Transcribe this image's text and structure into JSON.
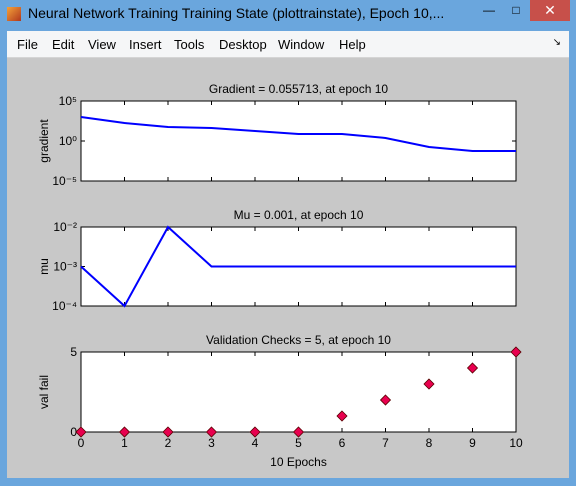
{
  "window": {
    "title": "Neural Network Training Training State (plottrainstate), Epoch 10,..."
  },
  "menu": [
    "File",
    "Edit",
    "View",
    "Insert",
    "Tools",
    "Desktop",
    "Window",
    "Help"
  ],
  "chart_data": [
    {
      "type": "line",
      "title": "Gradient = 0.055713, at epoch 10",
      "ylabel": "gradient",
      "log_y": true,
      "x": [
        0,
        1,
        2,
        3,
        4,
        5,
        6,
        7,
        8,
        9,
        10
      ],
      "values": [
        1000,
        178,
        56,
        42,
        18,
        7.5,
        7.5,
        2.4,
        0.18,
        0.056,
        0.055713
      ],
      "color": "#0000ff",
      "xlim": [
        0,
        10
      ],
      "xticks": [
        0,
        1,
        2,
        3,
        4,
        5,
        6,
        7,
        8,
        9,
        10
      ],
      "xtick_labels": false,
      "ylim": [
        1e-05,
        100000
      ],
      "yticks": [
        {
          "value": 1e-05,
          "label": "10⁻⁵"
        },
        {
          "value": 1,
          "label": "10⁰"
        },
        {
          "value": 100000,
          "label": "10⁵"
        }
      ]
    },
    {
      "type": "line",
      "title": "Mu = 0.001, at epoch 10",
      "ylabel": "mu",
      "log_y": true,
      "x": [
        0,
        1,
        2,
        3,
        4,
        5,
        6,
        7,
        8,
        9,
        10
      ],
      "values": [
        0.001,
        0.0001,
        0.01,
        0.001,
        0.001,
        0.001,
        0.001,
        0.001,
        0.001,
        0.001,
        0.001
      ],
      "color": "#0000ff",
      "xlim": [
        0,
        10
      ],
      "xticks": [
        0,
        1,
        2,
        3,
        4,
        5,
        6,
        7,
        8,
        9,
        10
      ],
      "xtick_labels": false,
      "ylim": [
        0.0001,
        0.01
      ],
      "yticks": [
        {
          "value": 0.0001,
          "label": "10⁻⁴"
        },
        {
          "value": 0.001,
          "label": "10⁻³"
        },
        {
          "value": 0.01,
          "label": "10⁻²"
        }
      ]
    },
    {
      "type": "scatter",
      "title": "Validation Checks = 5, at epoch 10",
      "ylabel": "val fail",
      "xlabel": "10 Epochs",
      "marker": "diamond",
      "x": [
        0,
        1,
        2,
        3,
        4,
        5,
        6,
        7,
        8,
        9,
        10
      ],
      "values": [
        0,
        0,
        0,
        0,
        0,
        0,
        1,
        2,
        3,
        4,
        5
      ],
      "color": "#e8004f",
      "xlim": [
        0,
        10
      ],
      "xticks": [
        0,
        1,
        2,
        3,
        4,
        5,
        6,
        7,
        8,
        9,
        10
      ],
      "xtick_labels": true,
      "ylim": [
        0,
        5
      ],
      "yticks": [
        0,
        5
      ]
    }
  ]
}
